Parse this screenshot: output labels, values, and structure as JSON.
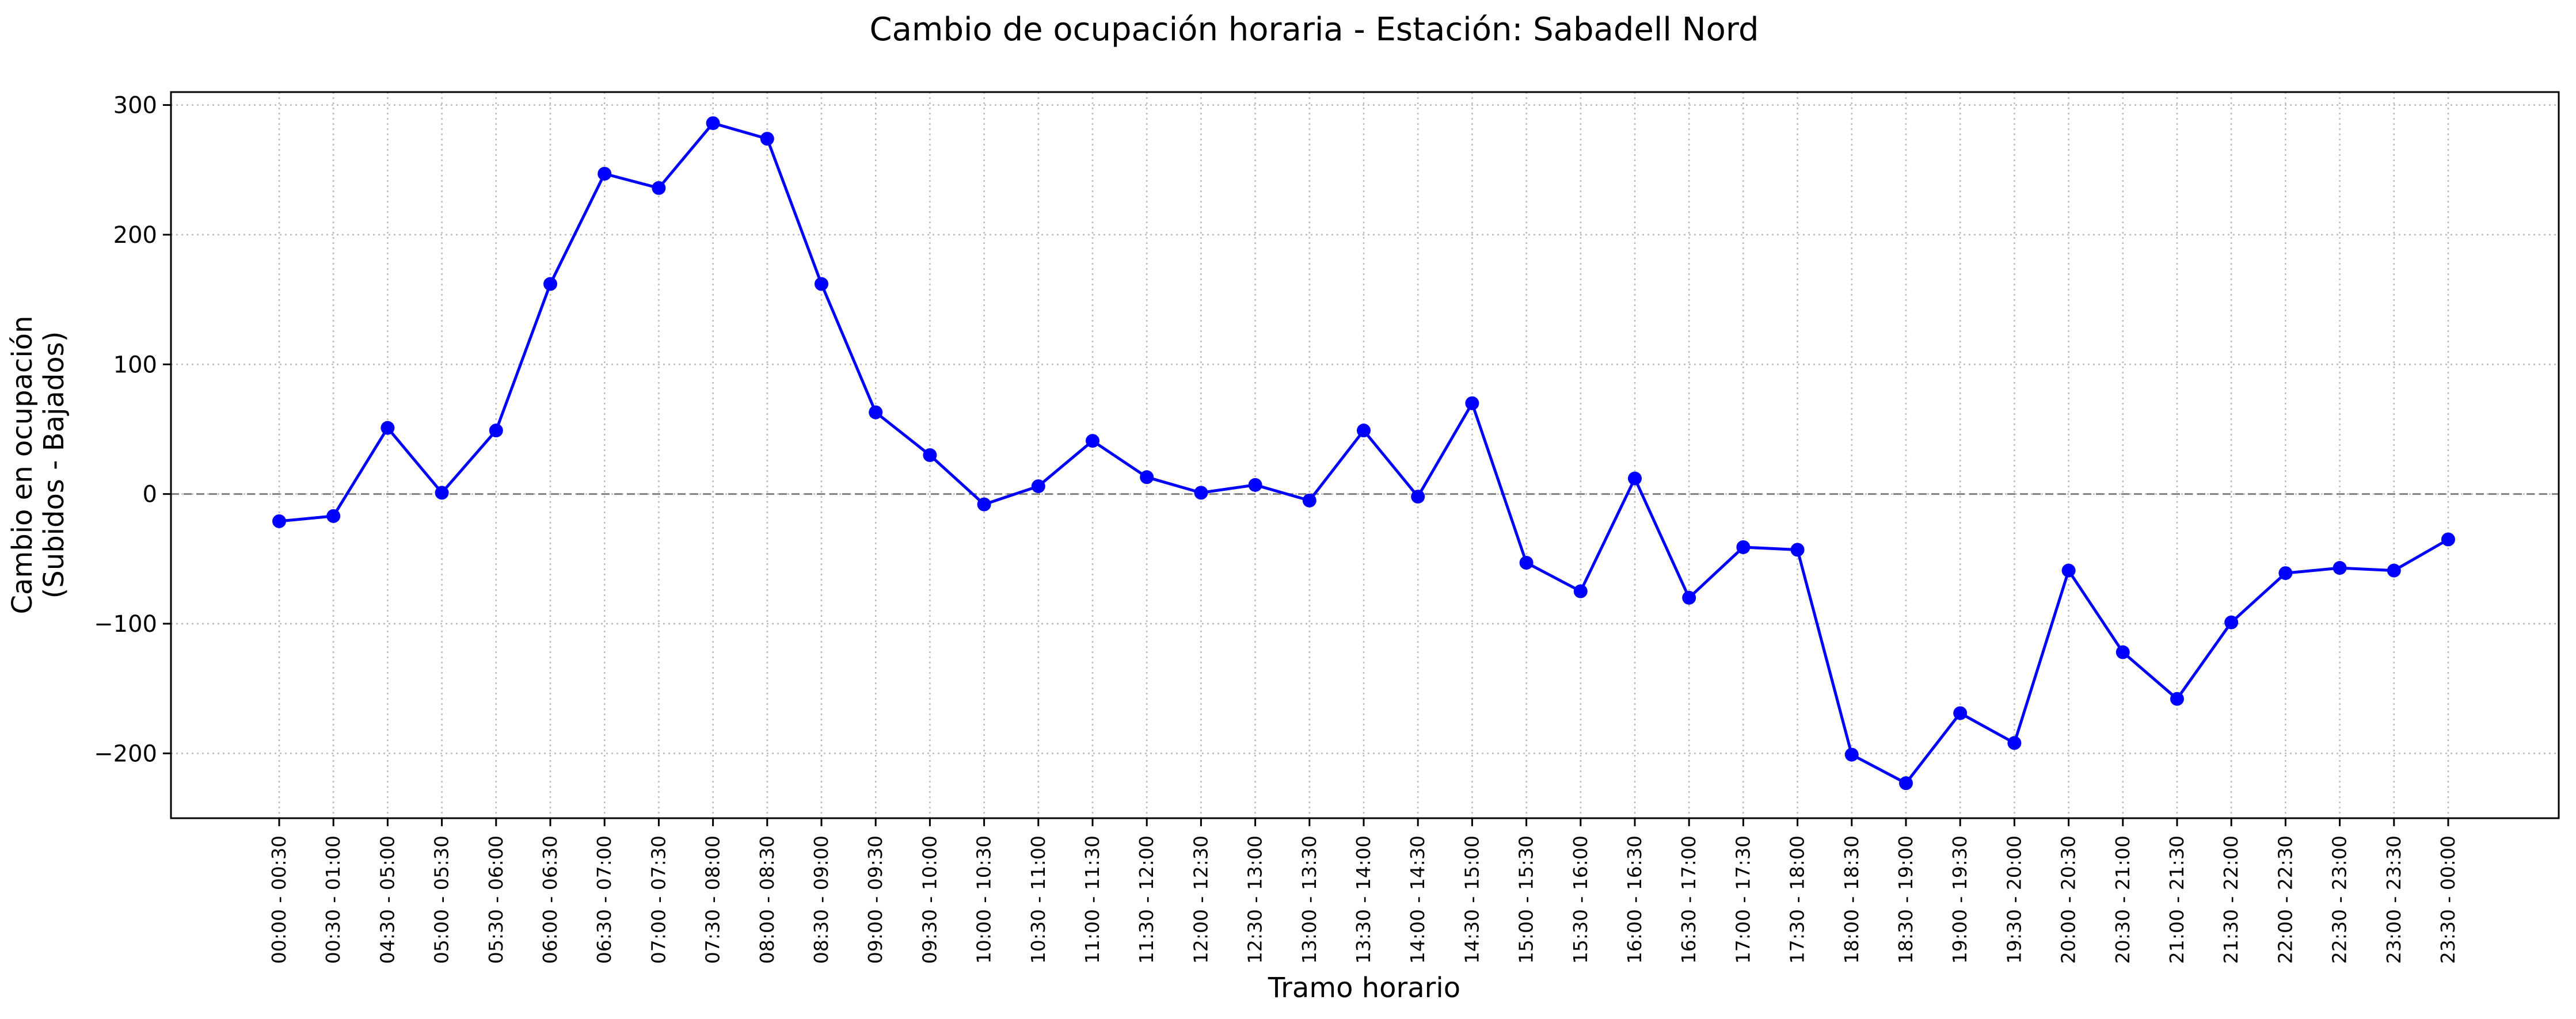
{
  "chart_data": {
    "type": "line",
    "title": "Cambio de ocupación horaria - Estación: Sabadell Nord",
    "xlabel": "Tramo horario",
    "ylabel_lines": [
      "Cambio en ocupación",
      "(Subidos - Bajados)"
    ],
    "ylim": [
      -250,
      310
    ],
    "yticks": [
      -200,
      -100,
      0,
      100,
      200,
      300
    ],
    "ytick_labels": [
      "−200",
      "−100",
      "0",
      "100",
      "200",
      "300"
    ],
    "grid": true,
    "reference_line": 0,
    "colors": {
      "line": "#0000ff",
      "grid": "#bbbbbb",
      "reference": "#808080"
    },
    "categories": [
      "00:00 - 00:30",
      "00:30 - 01:00",
      "04:30 - 05:00",
      "05:00 - 05:30",
      "05:30 - 06:00",
      "06:00 - 06:30",
      "06:30 - 07:00",
      "07:00 - 07:30",
      "07:30 - 08:00",
      "08:00 - 08:30",
      "08:30 - 09:00",
      "09:00 - 09:30",
      "09:30 - 10:00",
      "10:00 - 10:30",
      "10:30 - 11:00",
      "11:00 - 11:30",
      "11:30 - 12:00",
      "12:00 - 12:30",
      "12:30 - 13:00",
      "13:00 - 13:30",
      "13:30 - 14:00",
      "14:00 - 14:30",
      "14:30 - 15:00",
      "15:00 - 15:30",
      "15:30 - 16:00",
      "16:00 - 16:30",
      "16:30 - 17:00",
      "17:00 - 17:30",
      "17:30 - 18:00",
      "18:00 - 18:30",
      "18:30 - 19:00",
      "19:00 - 19:30",
      "19:30 - 20:00",
      "20:00 - 20:30",
      "20:30 - 21:00",
      "21:00 - 21:30",
      "21:30 - 22:00",
      "22:00 - 22:30",
      "22:30 - 23:00",
      "23:00 - 23:30",
      "23:30 - 00:00"
    ],
    "values": [
      -21,
      -17,
      51,
      1,
      49,
      162,
      247,
      236,
      286,
      274,
      162,
      63,
      30,
      -8,
      6,
      41,
      13,
      1,
      7,
      -5,
      49,
      -2,
      70,
      -53,
      -75,
      12,
      -80,
      -41,
      -43,
      -201,
      -223,
      -169,
      -192,
      -59,
      -122,
      -158,
      -99,
      -61,
      -57,
      -59,
      -35
    ]
  }
}
